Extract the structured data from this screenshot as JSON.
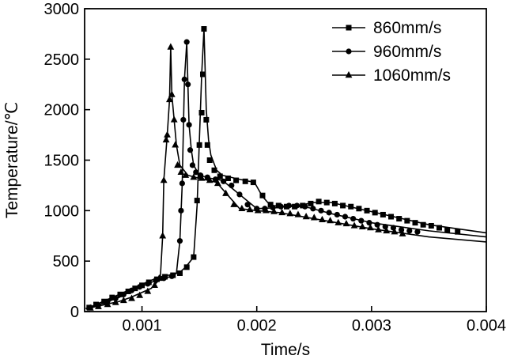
{
  "chart_data": {
    "type": "line",
    "title": "",
    "xlabel": "Time/s",
    "ylabel": "Temperature/℃",
    "xlim": [
      0.0005,
      0.004
    ],
    "ylim": [
      0,
      3000
    ],
    "xticks": [
      0.001,
      0.002,
      0.003,
      0.004
    ],
    "yticks": [
      0,
      500,
      1000,
      1500,
      2000,
      2500,
      3000
    ],
    "xtick_labels": [
      "0.001",
      "0.002",
      "0.003",
      "0.004"
    ],
    "ytick_labels": [
      "0",
      "500",
      "1000",
      "1500",
      "2000",
      "2500",
      "3000"
    ],
    "grid": false,
    "legend_position": "top-right",
    "colors": {
      "line": "#000000",
      "axis": "#000000",
      "background": "#ffffff"
    },
    "series": [
      {
        "name": "860mm/s",
        "marker": "square",
        "line": [
          [
            0.00051,
            30
          ],
          [
            0.00058,
            60
          ],
          [
            0.00068,
            110
          ],
          [
            0.0008,
            170
          ],
          [
            0.0009,
            220
          ],
          [
            0.001,
            270
          ],
          [
            0.00108,
            310
          ],
          [
            0.00118,
            350
          ],
          [
            0.00128,
            370
          ],
          [
            0.00133,
            390
          ],
          [
            0.00138,
            440
          ],
          [
            0.00145,
            540
          ],
          [
            0.00148,
            1050
          ],
          [
            0.0015,
            1700
          ],
          [
            0.00152,
            2350
          ],
          [
            0.00154,
            2800
          ],
          [
            0.00156,
            2000
          ],
          [
            0.00158,
            1700
          ],
          [
            0.0016,
            1550
          ],
          [
            0.00165,
            1400
          ],
          [
            0.0017,
            1350
          ],
          [
            0.00185,
            1310
          ],
          [
            0.00198,
            1280
          ],
          [
            0.00205,
            1140
          ],
          [
            0.00212,
            1050
          ],
          [
            0.0023,
            1040
          ],
          [
            0.0025,
            1080
          ],
          [
            0.00265,
            1080
          ],
          [
            0.003,
            990
          ],
          [
            0.0035,
            860
          ],
          [
            0.004,
            780
          ]
        ],
        "markers": [
          [
            0.00054,
            40
          ],
          [
            0.0006,
            70
          ],
          [
            0.00067,
            100
          ],
          [
            0.00074,
            140
          ],
          [
            0.00081,
            170
          ],
          [
            0.00088,
            200
          ],
          [
            0.00094,
            230
          ],
          [
            0.001,
            260
          ],
          [
            0.00106,
            290
          ],
          [
            0.00113,
            320
          ],
          [
            0.0012,
            345
          ],
          [
            0.00127,
            360
          ],
          [
            0.00133,
            380
          ],
          [
            0.00139,
            440
          ],
          [
            0.00145,
            540
          ],
          [
            0.00148,
            1100
          ],
          [
            0.0015,
            1650
          ],
          [
            0.00152,
            1970
          ],
          [
            0.00153,
            2350
          ],
          [
            0.00154,
            2800
          ],
          [
            0.00156,
            1900
          ],
          [
            0.00157,
            1650
          ],
          [
            0.00159,
            1500
          ],
          [
            0.00163,
            1400
          ],
          [
            0.00168,
            1340
          ],
          [
            0.00175,
            1320
          ],
          [
            0.00182,
            1300
          ],
          [
            0.0019,
            1290
          ],
          [
            0.00197,
            1280
          ],
          [
            0.00205,
            1150
          ],
          [
            0.00212,
            1060
          ],
          [
            0.00219,
            1050
          ],
          [
            0.00226,
            1040
          ],
          [
            0.00233,
            1040
          ],
          [
            0.0024,
            1050
          ],
          [
            0.00247,
            1070
          ],
          [
            0.00254,
            1090
          ],
          [
            0.00261,
            1080
          ],
          [
            0.00268,
            1070
          ],
          [
            0.00275,
            1050
          ],
          [
            0.00282,
            1040
          ],
          [
            0.00289,
            1020
          ],
          [
            0.00296,
            1000
          ],
          [
            0.00303,
            980
          ],
          [
            0.0031,
            960
          ],
          [
            0.00317,
            940
          ],
          [
            0.00324,
            920
          ],
          [
            0.00331,
            900
          ],
          [
            0.00338,
            880
          ],
          [
            0.00345,
            860
          ],
          [
            0.00352,
            850
          ],
          [
            0.00359,
            830
          ],
          [
            0.00366,
            810
          ],
          [
            0.00375,
            790
          ]
        ]
      },
      {
        "name": "960mm/s",
        "marker": "circle",
        "line": [
          [
            0.00051,
            30
          ],
          [
            0.00058,
            50
          ],
          [
            0.00068,
            90
          ],
          [
            0.0008,
            140
          ],
          [
            0.0009,
            200
          ],
          [
            0.001,
            250
          ],
          [
            0.00108,
            290
          ],
          [
            0.00118,
            330
          ],
          [
            0.00125,
            345
          ],
          [
            0.0013,
            380
          ],
          [
            0.00133,
            700
          ],
          [
            0.00135,
            1250
          ],
          [
            0.00137,
            2300
          ],
          [
            0.00139,
            2670
          ],
          [
            0.0014,
            2250
          ],
          [
            0.00141,
            1850
          ],
          [
            0.00143,
            1600
          ],
          [
            0.00145,
            1450
          ],
          [
            0.0015,
            1350
          ],
          [
            0.0016,
            1320
          ],
          [
            0.0017,
            1300
          ],
          [
            0.00185,
            1160
          ],
          [
            0.002,
            1020
          ],
          [
            0.0022,
            1030
          ],
          [
            0.0023,
            1050
          ],
          [
            0.00245,
            1030
          ],
          [
            0.00265,
            970
          ],
          [
            0.003,
            880
          ],
          [
            0.0035,
            800
          ],
          [
            0.004,
            740
          ]
        ],
        "markers": [
          [
            0.00055,
            40
          ],
          [
            0.00062,
            65
          ],
          [
            0.0007,
            100
          ],
          [
            0.00077,
            130
          ],
          [
            0.00084,
            170
          ],
          [
            0.00091,
            210
          ],
          [
            0.00098,
            245
          ],
          [
            0.00105,
            275
          ],
          [
            0.00112,
            310
          ],
          [
            0.00119,
            330
          ],
          [
            0.00126,
            350
          ],
          [
            0.00133,
            700
          ],
          [
            0.00134,
            1000
          ],
          [
            0.00135,
            1270
          ],
          [
            0.00136,
            1900
          ],
          [
            0.00137,
            2300
          ],
          [
            0.00139,
            2670
          ],
          [
            0.0014,
            2250
          ],
          [
            0.00141,
            1850
          ],
          [
            0.00142,
            1600
          ],
          [
            0.00144,
            1450
          ],
          [
            0.00147,
            1380
          ],
          [
            0.00151,
            1350
          ],
          [
            0.00157,
            1330
          ],
          [
            0.00164,
            1310
          ],
          [
            0.00171,
            1290
          ],
          [
            0.00178,
            1250
          ],
          [
            0.00185,
            1160
          ],
          [
            0.00192,
            1060
          ],
          [
            0.002,
            1020
          ],
          [
            0.00207,
            1020
          ],
          [
            0.00214,
            1030
          ],
          [
            0.00221,
            1040
          ],
          [
            0.00228,
            1050
          ],
          [
            0.00235,
            1050
          ],
          [
            0.00242,
            1040
          ],
          [
            0.00249,
            1020
          ],
          [
            0.00256,
            1000
          ],
          [
            0.00263,
            980
          ],
          [
            0.0027,
            960
          ],
          [
            0.00277,
            940
          ],
          [
            0.00284,
            920
          ],
          [
            0.00291,
            900
          ],
          [
            0.00298,
            880
          ],
          [
            0.00305,
            860
          ],
          [
            0.00312,
            840
          ],
          [
            0.00319,
            830
          ],
          [
            0.00326,
            810
          ],
          [
            0.00333,
            800
          ],
          [
            0.0034,
            790
          ]
        ]
      },
      {
        "name": "1060mm/s",
        "marker": "triangle",
        "line": [
          [
            0.00051,
            30
          ],
          [
            0.00058,
            45
          ],
          [
            0.00068,
            70
          ],
          [
            0.0008,
            100
          ],
          [
            0.0009,
            140
          ],
          [
            0.001,
            190
          ],
          [
            0.00108,
            230
          ],
          [
            0.00113,
            290
          ],
          [
            0.00116,
            340
          ],
          [
            0.00118,
            750
          ],
          [
            0.00119,
            1300
          ],
          [
            0.00122,
            1750
          ],
          [
            0.00124,
            2100
          ],
          [
            0.00125,
            2620
          ],
          [
            0.00126,
            2150
          ],
          [
            0.00128,
            1900
          ],
          [
            0.0013,
            1650
          ],
          [
            0.00133,
            1450
          ],
          [
            0.0014,
            1350
          ],
          [
            0.0015,
            1320
          ],
          [
            0.00165,
            1280
          ],
          [
            0.00175,
            1150
          ],
          [
            0.00185,
            1020
          ],
          [
            0.002,
            1000
          ],
          [
            0.0022,
            980
          ],
          [
            0.0025,
            920
          ],
          [
            0.003,
            820
          ],
          [
            0.0035,
            740
          ],
          [
            0.004,
            690
          ]
        ],
        "markers": [
          [
            0.00055,
            35
          ],
          [
            0.00062,
            50
          ],
          [
            0.0007,
            70
          ],
          [
            0.00077,
            90
          ],
          [
            0.00084,
            110
          ],
          [
            0.00091,
            130
          ],
          [
            0.00098,
            160
          ],
          [
            0.00105,
            200
          ],
          [
            0.00111,
            260
          ],
          [
            0.00115,
            330
          ],
          [
            0.00118,
            750
          ],
          [
            0.00119,
            1300
          ],
          [
            0.00121,
            1700
          ],
          [
            0.00122,
            1750
          ],
          [
            0.00124,
            2100
          ],
          [
            0.00125,
            2620
          ],
          [
            0.00126,
            2150
          ],
          [
            0.00128,
            1900
          ],
          [
            0.00129,
            1650
          ],
          [
            0.00131,
            1450
          ],
          [
            0.00134,
            1380
          ],
          [
            0.00138,
            1350
          ],
          [
            0.00145,
            1330
          ],
          [
            0.00152,
            1320
          ],
          [
            0.00159,
            1300
          ],
          [
            0.00166,
            1270
          ],
          [
            0.00173,
            1170
          ],
          [
            0.0018,
            1060
          ],
          [
            0.00187,
            1020
          ],
          [
            0.00194,
            1010
          ],
          [
            0.00201,
            1000
          ],
          [
            0.00208,
            1000
          ],
          [
            0.00215,
            990
          ],
          [
            0.00222,
            980
          ],
          [
            0.00229,
            970
          ],
          [
            0.00236,
            960
          ],
          [
            0.00243,
            940
          ],
          [
            0.0025,
            930
          ],
          [
            0.00257,
            910
          ],
          [
            0.00264,
            900
          ],
          [
            0.00271,
            880
          ],
          [
            0.00278,
            870
          ],
          [
            0.00285,
            850
          ],
          [
            0.00292,
            840
          ],
          [
            0.00299,
            830
          ],
          [
            0.00306,
            810
          ],
          [
            0.00313,
            800
          ],
          [
            0.0032,
            790
          ],
          [
            0.00327,
            770
          ]
        ]
      }
    ]
  }
}
